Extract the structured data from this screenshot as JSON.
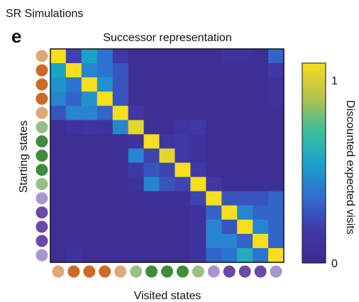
{
  "figure": {
    "heading": "SR Simulations",
    "panel_letter": "e"
  },
  "chart_data": {
    "type": "heatmap",
    "title": "Successor representation",
    "xlabel": "Visited states",
    "ylabel": "Starting states",
    "colorbar": {
      "label": "Discounted expected visits",
      "min": 0,
      "max": 1,
      "tick_labels": [
        "1",
        "0"
      ],
      "colormap": [
        "#3b2a8c",
        "#4039a8",
        "#2f6fd2",
        "#1aa3c9",
        "#3fbf98",
        "#b7c24a",
        "#f7de1e"
      ]
    },
    "state_groups": [
      {
        "name": "light-orange",
        "color": "#e0a877"
      },
      {
        "name": "dark-orange",
        "color": "#cc6a27"
      },
      {
        "name": "light-green",
        "color": "#97bf87"
      },
      {
        "name": "dark-green",
        "color": "#3f8c3a"
      },
      {
        "name": "light-purple",
        "color": "#a996cf"
      },
      {
        "name": "dark-purple",
        "color": "#6a49a5"
      }
    ],
    "state_colors": [
      "light-orange",
      "dark-orange",
      "dark-orange",
      "dark-orange",
      "light-orange",
      "light-green",
      "dark-green",
      "dark-green",
      "dark-green",
      "light-green",
      "light-purple",
      "dark-purple",
      "dark-purple",
      "dark-purple",
      "light-purple"
    ],
    "values": [
      [
        1.0,
        0.2,
        0.5,
        0.35,
        0.15,
        0.05,
        0.05,
        0.05,
        0.05,
        0.05,
        0.05,
        0.1,
        0.1,
        0.05,
        0.3
      ],
      [
        0.5,
        1.0,
        0.4,
        0.35,
        0.25,
        0.05,
        0.05,
        0.05,
        0.05,
        0.05,
        0.05,
        0.05,
        0.05,
        0.05,
        0.15
      ],
      [
        0.45,
        0.35,
        1.0,
        0.45,
        0.25,
        0.05,
        0.05,
        0.05,
        0.05,
        0.05,
        0.05,
        0.05,
        0.05,
        0.05,
        0.1
      ],
      [
        0.4,
        0.3,
        0.45,
        1.0,
        0.25,
        0.05,
        0.05,
        0.05,
        0.05,
        0.05,
        0.05,
        0.05,
        0.05,
        0.05,
        0.1
      ],
      [
        0.25,
        0.4,
        0.4,
        0.3,
        1.0,
        0.15,
        0.05,
        0.05,
        0.05,
        0.05,
        0.05,
        0.05,
        0.05,
        0.05,
        0.05
      ],
      [
        0.05,
        0.1,
        0.12,
        0.1,
        0.4,
        0.95,
        0.08,
        0.05,
        0.12,
        0.15,
        0.05,
        0.05,
        0.05,
        0.05,
        0.05
      ],
      [
        0.05,
        0.05,
        0.05,
        0.05,
        0.05,
        0.1,
        1.0,
        0.12,
        0.15,
        0.1,
        0.05,
        0.05,
        0.05,
        0.05,
        0.05
      ],
      [
        0.05,
        0.05,
        0.05,
        0.05,
        0.05,
        0.4,
        0.2,
        0.95,
        0.15,
        0.1,
        0.05,
        0.05,
        0.05,
        0.05,
        0.05
      ],
      [
        0.05,
        0.05,
        0.05,
        0.05,
        0.05,
        0.15,
        0.25,
        0.2,
        1.0,
        0.15,
        0.05,
        0.05,
        0.05,
        0.05,
        0.05
      ],
      [
        0.05,
        0.05,
        0.05,
        0.05,
        0.05,
        0.1,
        0.4,
        0.25,
        0.2,
        1.0,
        0.15,
        0.05,
        0.05,
        0.05,
        0.05
      ],
      [
        0.05,
        0.05,
        0.05,
        0.05,
        0.05,
        0.05,
        0.08,
        0.08,
        0.08,
        0.2,
        1.0,
        0.25,
        0.25,
        0.25,
        0.3
      ],
      [
        0.05,
        0.05,
        0.05,
        0.05,
        0.05,
        0.05,
        0.05,
        0.05,
        0.05,
        0.1,
        0.3,
        1.0,
        0.4,
        0.3,
        0.3
      ],
      [
        0.05,
        0.05,
        0.05,
        0.05,
        0.05,
        0.05,
        0.05,
        0.05,
        0.05,
        0.1,
        0.4,
        0.25,
        1.0,
        0.4,
        0.3
      ],
      [
        0.05,
        0.05,
        0.05,
        0.05,
        0.05,
        0.05,
        0.05,
        0.05,
        0.05,
        0.1,
        0.4,
        0.4,
        0.3,
        1.0,
        0.3
      ],
      [
        0.05,
        0.1,
        0.05,
        0.05,
        0.05,
        0.05,
        0.05,
        0.05,
        0.05,
        0.1,
        0.3,
        0.35,
        0.55,
        0.35,
        1.0
      ]
    ]
  }
}
